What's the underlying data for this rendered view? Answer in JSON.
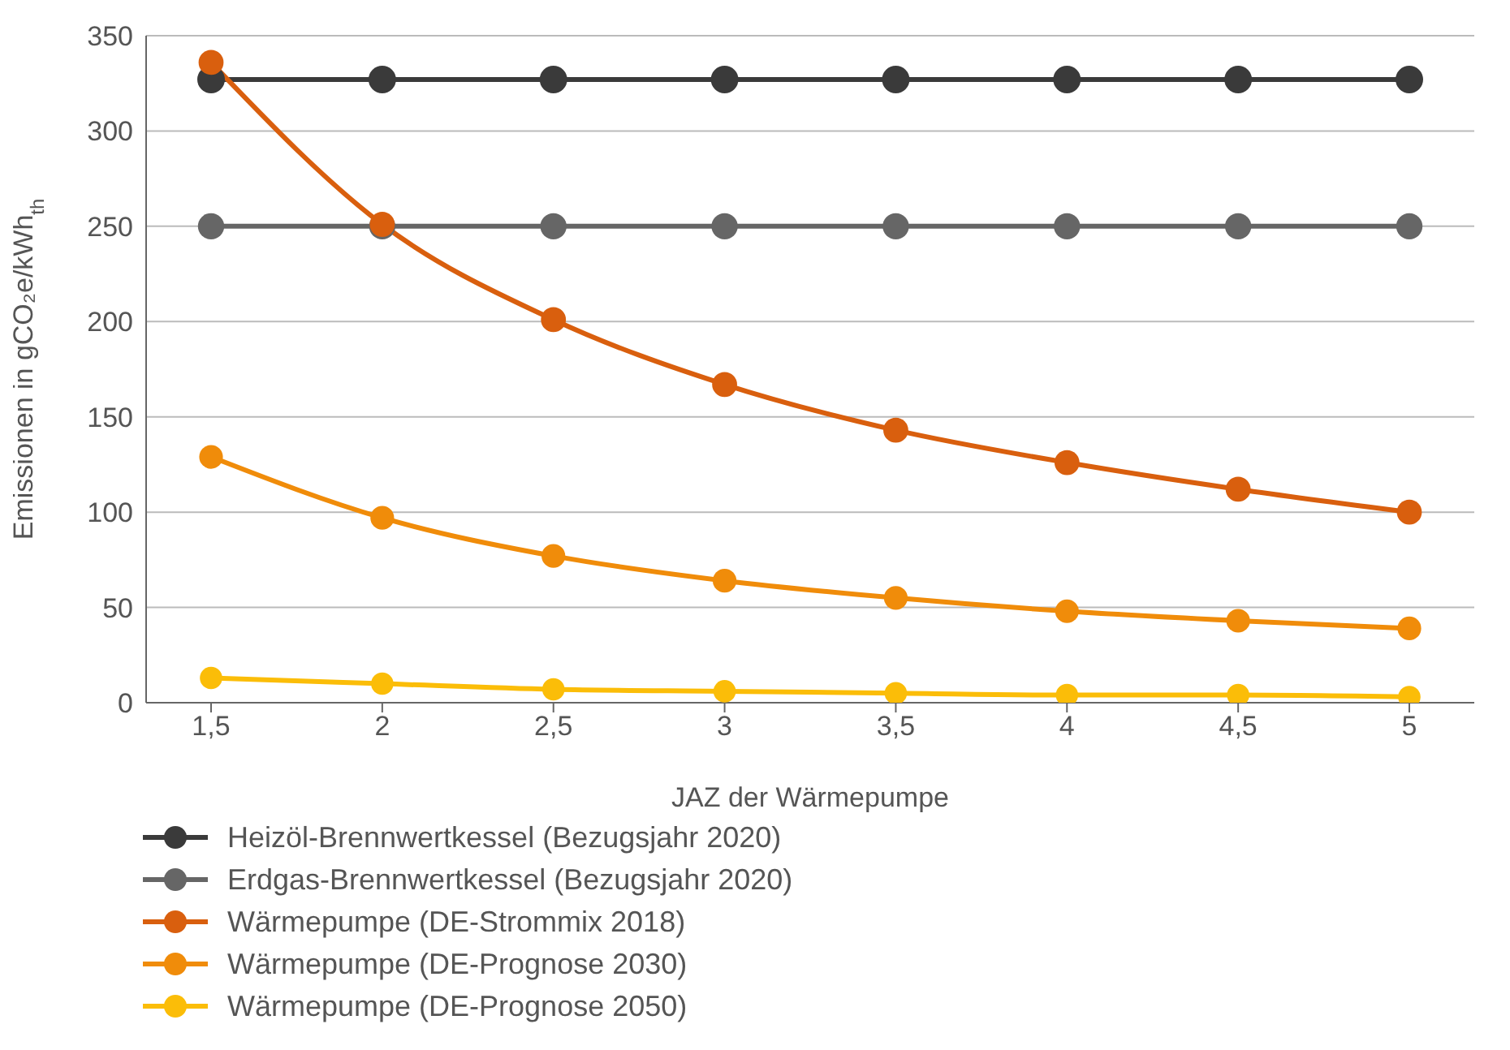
{
  "chart_data": {
    "type": "line",
    "xlabel": "JAZ der Wärmepumpe",
    "ylabel": "Emissionen in gCO₂e/kWh$_{th}$",
    "categories": [
      "1,5",
      "2",
      "2,5",
      "3",
      "3,5",
      "4",
      "4,5",
      "5"
    ],
    "series": [
      {
        "name": "Heizöl-Brennwertkessel (Bezugsjahr 2020)",
        "color": "#3a3a3a",
        "values": [
          327,
          327,
          327,
          327,
          327,
          327,
          327,
          327
        ]
      },
      {
        "name": "Erdgas-Brennwertkessel (Bezugsjahr 2020)",
        "color": "#666666",
        "values": [
          250,
          250,
          250,
          250,
          250,
          250,
          250,
          250
        ]
      },
      {
        "name": "Wärmepumpe (DE-Strommix 2018)",
        "color": "#d95f0e",
        "values": [
          336,
          251,
          201,
          167,
          143,
          126,
          112,
          100
        ]
      },
      {
        "name": "Wärmepumpe (DE-Prognose 2030)",
        "color": "#f08c0a",
        "values": [
          129,
          97,
          77,
          64,
          55,
          48,
          43,
          39
        ]
      },
      {
        "name": "Wärmepumpe (DE-Prognose 2050)",
        "color": "#fbbd08",
        "values": [
          13,
          10,
          7,
          6,
          5,
          4,
          4,
          3
        ]
      }
    ],
    "ylim": [
      0,
      350
    ],
    "yticks": [
      0,
      50,
      100,
      150,
      200,
      250,
      300,
      350
    ],
    "grid": "y",
    "legend": "bottom",
    "marker": "circle",
    "line_style": "solid"
  }
}
